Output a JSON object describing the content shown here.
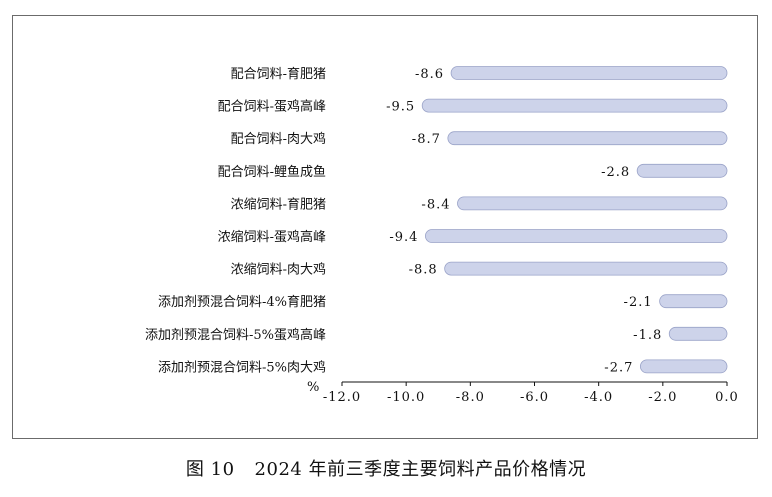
{
  "caption": {
    "figure_no": "图 10",
    "title": "2024 年前三季度主要饲料产品价格情况"
  },
  "colors": {
    "bar_fill": "#cdd3ea",
    "bar_stroke": "#9aa3c8",
    "frame": "#6b6b6b",
    "text": "#111111"
  },
  "chart_data": {
    "type": "bar",
    "orientation": "horizontal",
    "title": "2024 年前三季度主要饲料产品价格情况",
    "ylabel": "",
    "xlabel": "%",
    "xlim": [
      -12.0,
      0.0
    ],
    "xticks": [
      -12.0,
      -10.0,
      -8.0,
      -6.0,
      -4.0,
      -2.0,
      0.0
    ],
    "tick_labels": [
      "-12.0",
      "-10.0",
      "-8.0",
      "-6.0",
      "-4.0",
      "-2.0",
      "0.0"
    ],
    "grid": false,
    "legend": "none",
    "categories": [
      "配合饲料-育肥猪",
      "配合饲料-蛋鸡高峰",
      "配合饲料-肉大鸡",
      "配合饲料-鲤鱼成鱼",
      "浓缩饲料-育肥猪",
      "浓缩饲料-蛋鸡高峰",
      "浓缩饲料-肉大鸡",
      "添加剂预混合饲料-4%育肥猪",
      "添加剂预混合饲料-5%蛋鸡高峰",
      "添加剂预混合饲料-5%肉大鸡"
    ],
    "values": [
      -8.6,
      -9.5,
      -8.7,
      -2.8,
      -8.4,
      -9.4,
      -8.8,
      -2.1,
      -1.8,
      -2.7
    ],
    "value_labels": [
      "-8.6",
      "-9.5",
      "-8.7",
      "-2.8",
      "-8.4",
      "-9.4",
      "-8.8",
      "-2.1",
      "-1.8",
      "-2.7"
    ]
  }
}
